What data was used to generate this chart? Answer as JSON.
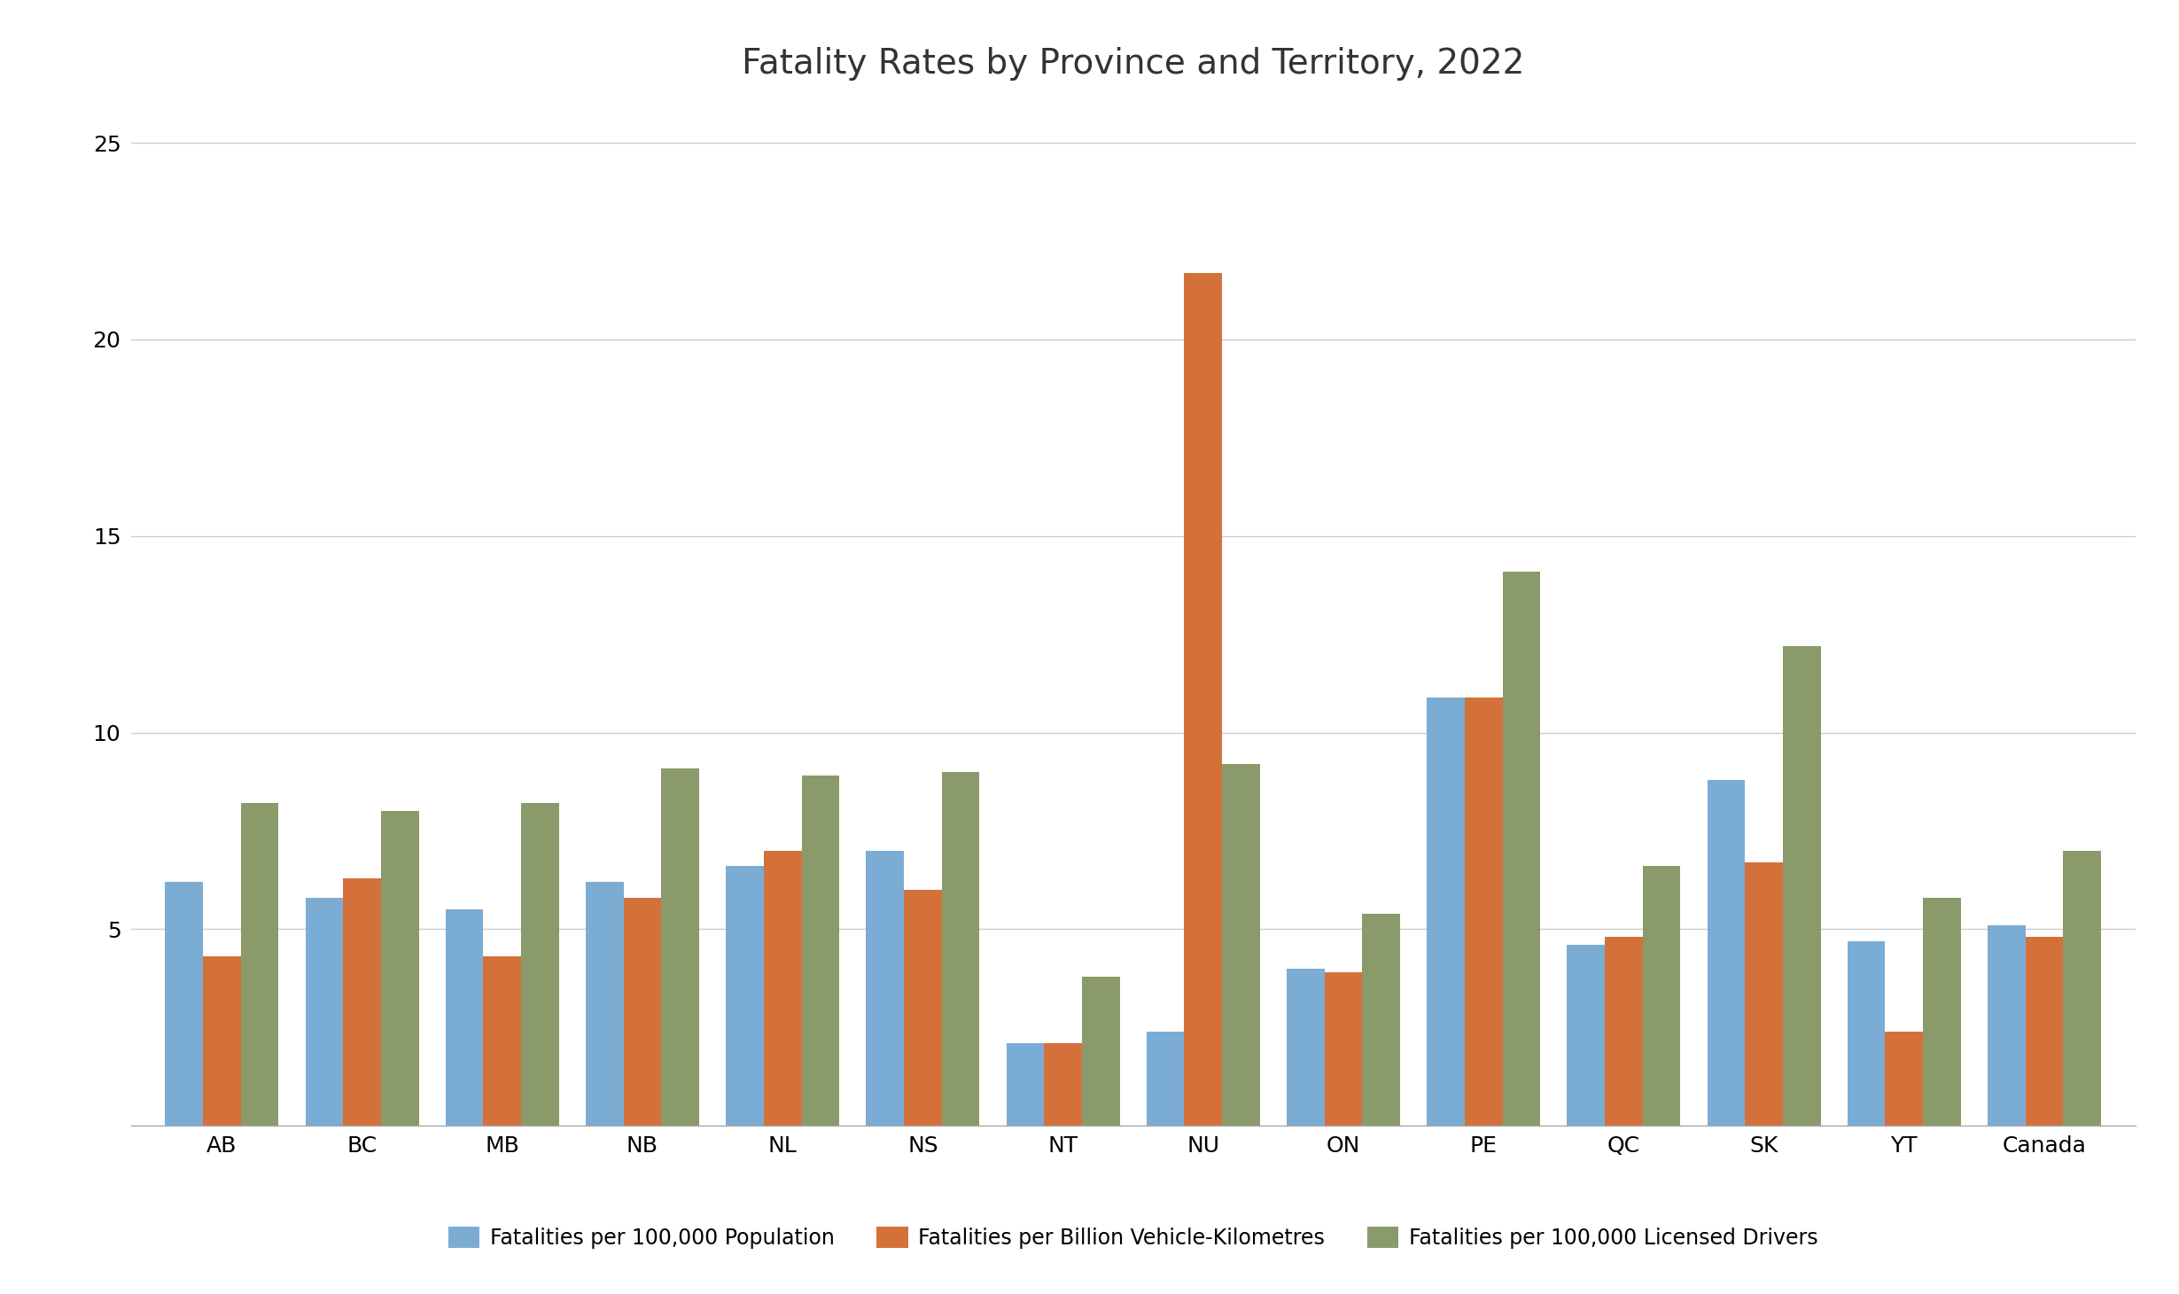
{
  "title": "Fatality Rates by Province and Territory, 2022",
  "categories": [
    "AB",
    "BC",
    "MB",
    "NB",
    "NL",
    "NS",
    "NT",
    "NU",
    "ON",
    "PE",
    "QC",
    "SK",
    "YT",
    "Canada"
  ],
  "series": {
    "population": {
      "label": "Fatalities per 100,000 Population",
      "color": "#7bacd4",
      "values": [
        6.2,
        5.8,
        5.5,
        6.2,
        6.6,
        7.0,
        2.1,
        2.4,
        4.0,
        10.9,
        4.6,
        8.8,
        4.7,
        5.1
      ]
    },
    "vehicle_km": {
      "label": "Fatalities per Billion Vehicle-Kilometres",
      "color": "#d4713b",
      "values": [
        4.3,
        6.3,
        4.3,
        5.8,
        7.0,
        6.0,
        2.1,
        21.7,
        3.9,
        10.9,
        4.8,
        6.7,
        2.4,
        4.8
      ]
    },
    "licensed_drivers": {
      "label": "Fatalities per 100,000 Licensed Drivers",
      "color": "#8a9a6a",
      "values": [
        8.2,
        8.0,
        8.2,
        9.1,
        8.9,
        9.0,
        3.8,
        9.2,
        5.4,
        14.1,
        6.6,
        12.2,
        5.8,
        7.0
      ]
    }
  },
  "ylim": [
    0,
    26
  ],
  "yticks": [
    0,
    5,
    10,
    15,
    20,
    25
  ],
  "background_color": "#ffffff",
  "title_fontsize": 28,
  "tick_fontsize": 18,
  "legend_fontsize": 17,
  "bar_width": 0.27,
  "grid_color": "#cccccc"
}
